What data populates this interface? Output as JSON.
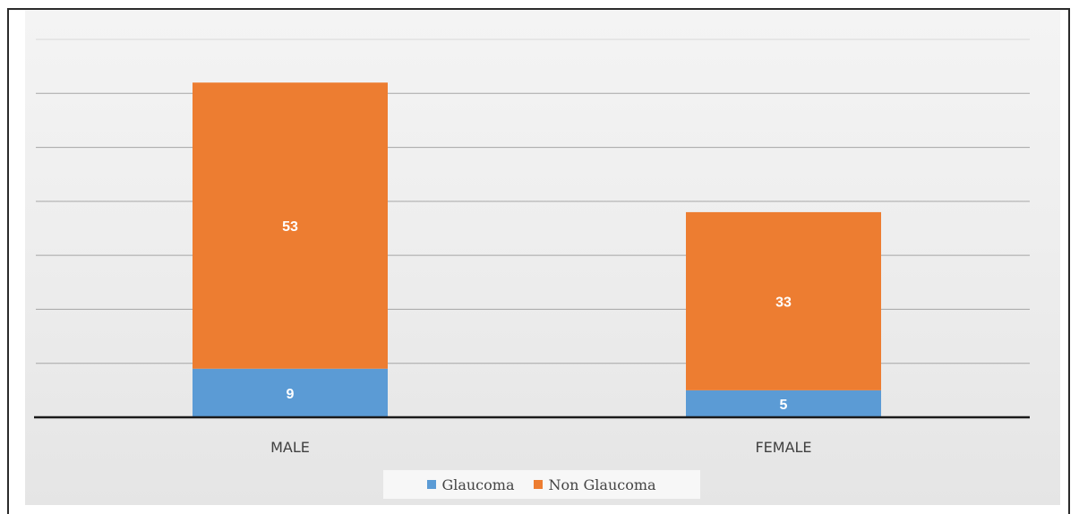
{
  "chart_data": {
    "type": "bar",
    "stacked": true,
    "categories": [
      "MALE",
      "FEMALE"
    ],
    "series": [
      {
        "name": "Glaucoma",
        "values": [
          9,
          5
        ],
        "color": "#5b9bd5"
      },
      {
        "name": "Non Glaucoma",
        "values": [
          53,
          33
        ],
        "color": "#ed7d31"
      }
    ],
    "title": "",
    "xlabel": "",
    "ylabel": "",
    "ylim": [
      0,
      70
    ],
    "grid": true,
    "legend_position": "bottom"
  },
  "legend": {
    "glaucoma_label": "Glaucoma",
    "non_glaucoma_label": "Non Glaucoma"
  }
}
